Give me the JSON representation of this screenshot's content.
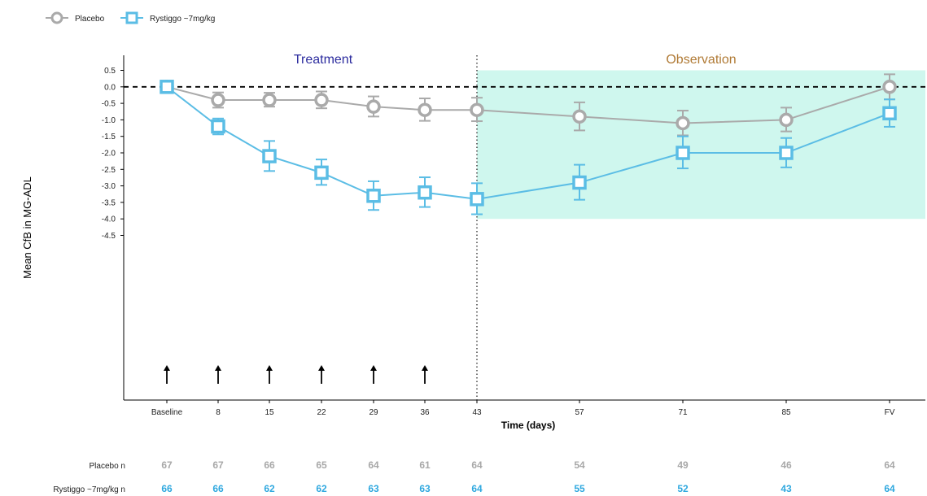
{
  "legend": {
    "placebo_label": "Placebo",
    "rystiggo_label": "Rystiggo ~7mg/kg"
  },
  "colors": {
    "placebo": "#aaaaaa",
    "rystiggo": "#5bbde5",
    "observation_band": "#cff7ee",
    "treatment_text": "#2b2b9e",
    "observation_text": "#b07a35",
    "placebo_n_text": "#a8a8a8",
    "rystiggo_n_text": "#2fa8df"
  },
  "chart_data": {
    "type": "line",
    "ylabel": "Mean CfB in MG-ADL",
    "xlabel": "Time (days)",
    "categories": [
      "Baseline",
      "8",
      "15",
      "22",
      "29",
      "36",
      "43",
      "57",
      "71",
      "85",
      "FV"
    ],
    "ylim": [
      -4.5,
      0.5
    ],
    "yticks": [
      "0.5",
      "0.0",
      "-0.5",
      "-1.0",
      "-1.5",
      "-2.0",
      "-2.5",
      "-3.0",
      "-3.5",
      "-4.0",
      "-4.5"
    ],
    "reference_line_y": 0.0,
    "phases": [
      {
        "label": "Treatment",
        "from": "Baseline",
        "to": "43"
      },
      {
        "label": "Observation",
        "from": "43",
        "to": "FV"
      }
    ],
    "observation_band_ylim": [
      -4.0,
      0.5
    ],
    "dosing_arrows_at": [
      "Baseline",
      "8",
      "15",
      "22",
      "29",
      "36"
    ],
    "series": [
      {
        "name": "Placebo",
        "marker": "circle",
        "values": [
          0.0,
          -0.4,
          -0.4,
          -0.4,
          -0.6,
          -0.7,
          -0.7,
          -0.9,
          -1.1,
          -1.0,
          0.0
        ],
        "error_low": [
          0.0,
          -0.63,
          -0.6,
          -0.65,
          -0.9,
          -1.03,
          -1.04,
          -1.32,
          -1.47,
          -1.35,
          -0.38
        ],
        "error_high": [
          0.0,
          -0.17,
          -0.18,
          -0.14,
          -0.29,
          -0.35,
          -0.33,
          -0.47,
          -0.72,
          -0.63,
          0.38
        ]
      },
      {
        "name": "Rystiggo ~7mg/kg",
        "marker": "square",
        "values": [
          0.0,
          -1.2,
          -2.1,
          -2.6,
          -3.3,
          -3.2,
          -3.4,
          -2.9,
          -2.0,
          -2.0,
          -0.8
        ],
        "error_low": [
          0.0,
          -1.44,
          -2.55,
          -2.97,
          -3.73,
          -3.64,
          -3.86,
          -3.42,
          -2.47,
          -2.44,
          -1.21
        ],
        "error_high": [
          0.0,
          -0.96,
          -1.64,
          -2.2,
          -2.86,
          -2.74,
          -2.92,
          -2.36,
          -1.5,
          -1.55,
          -0.38
        ]
      }
    ],
    "n_at_risk": {
      "placebo_label": "Placebo n",
      "rystiggo_label": "Rystiggo ~7mg/kg n",
      "placebo": [
        "67",
        "67",
        "66",
        "65",
        "64",
        "61",
        "64",
        "54",
        "49",
        "46",
        "64"
      ],
      "rystiggo": [
        "66",
        "66",
        "62",
        "62",
        "63",
        "63",
        "64",
        "55",
        "52",
        "43",
        "64"
      ]
    }
  }
}
